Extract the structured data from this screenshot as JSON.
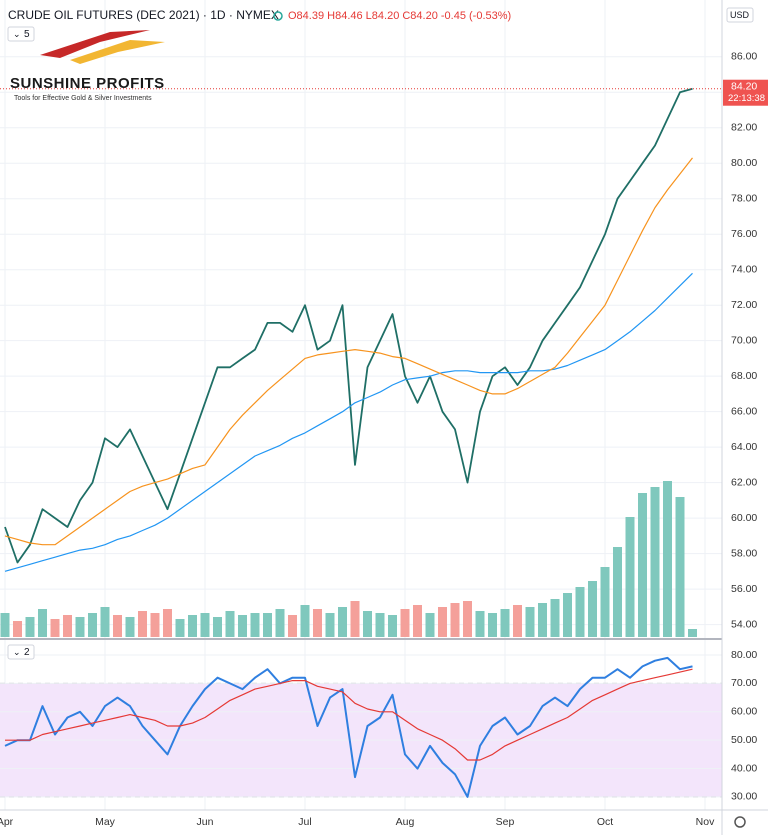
{
  "header": {
    "title": "CRUDE OIL FUTURES (DEC 2021) · 1D · NYMEX",
    "ohlc": "O84.39 H84.46 L84.20 C84.20 -0.45 (-0.53%)",
    "pane_main": "5",
    "pane_rsi": "2",
    "currency": "USD",
    "logo_title": "SUNSHINE PROFITS",
    "logo_tagline": "Tools for Effective Gold & Silver Investments"
  },
  "chart_data": [
    {
      "type": "line",
      "categories": [
        "Apr",
        null,
        null,
        null,
        null,
        null,
        null,
        null,
        "May",
        null,
        null,
        null,
        null,
        null,
        null,
        null,
        "Jun",
        null,
        null,
        null,
        null,
        null,
        null,
        null,
        "Jul",
        null,
        null,
        null,
        null,
        null,
        null,
        null,
        "Aug",
        null,
        null,
        null,
        null,
        null,
        null,
        null,
        "Sep",
        null,
        null,
        null,
        null,
        null,
        null,
        null,
        "Oct",
        null,
        null,
        null,
        null,
        null,
        null,
        null,
        "Nov"
      ],
      "series": [
        {
          "color": "#1f6f66",
          "values": [
            59.5,
            57.5,
            58.5,
            60.5,
            60,
            59.5,
            61,
            62,
            64.5,
            64,
            65,
            63.5,
            62,
            60.5,
            62.5,
            64.5,
            66.5,
            68.5,
            68.5,
            69,
            69.5,
            71,
            71,
            70.5,
            72,
            69.5,
            70,
            72,
            63,
            68.5,
            70,
            71.5,
            68,
            66.5,
            68,
            66,
            65,
            62,
            66,
            68,
            68.5,
            67.5,
            68.5,
            70,
            71,
            72,
            73,
            74.5,
            76,
            78,
            79,
            80,
            81,
            82.5,
            84,
            84.2,
            null
          ]
        },
        {
          "color": "#2196f3",
          "values": [
            57,
            57.2,
            57.4,
            57.6,
            57.8,
            58,
            58.2,
            58.3,
            58.5,
            58.8,
            59,
            59.3,
            59.6,
            60,
            60.5,
            61,
            61.5,
            62,
            62.5,
            63,
            63.5,
            63.8,
            64.1,
            64.5,
            64.8,
            65.2,
            65.6,
            66,
            66.5,
            66.8,
            67.1,
            67.5,
            67.8,
            67.9,
            68,
            68.2,
            68.3,
            68.3,
            68.2,
            68.2,
            68.2,
            68.2,
            68.3,
            68.3,
            68.4,
            68.6,
            68.9,
            69.2,
            69.5,
            70,
            70.5,
            71.1,
            71.7,
            72.4,
            73.1,
            73.8,
            null
          ]
        },
        {
          "color": "#f7931e",
          "values": [
            59,
            58.8,
            58.6,
            58.5,
            58.5,
            59,
            59.5,
            60,
            60.5,
            61,
            61.5,
            61.8,
            62,
            62.2,
            62.5,
            62.8,
            63,
            64,
            65,
            65.8,
            66.5,
            67.2,
            67.8,
            68.4,
            69,
            69.2,
            69.3,
            69.4,
            69.5,
            69.4,
            69.3,
            69.1,
            69,
            68.7,
            68.4,
            68.1,
            67.8,
            67.5,
            67.2,
            67,
            67,
            67.3,
            67.7,
            68.1,
            68.5,
            69.3,
            70.2,
            71.1,
            72,
            73.4,
            74.8,
            76.2,
            77.5,
            78.5,
            79.4,
            80.3,
            null
          ]
        }
      ],
      "volume": {
        "vlim": [
          0,
          100
        ],
        "up_color": "#7fc8bd",
        "down_color": "#f4a09a",
        "values": [
          12,
          8,
          10,
          14,
          9,
          11,
          10,
          12,
          15,
          11,
          10,
          13,
          12,
          14,
          9,
          11,
          12,
          10,
          13,
          11,
          12,
          12,
          14,
          11,
          16,
          14,
          12,
          15,
          18,
          13,
          12,
          11,
          14,
          16,
          12,
          15,
          17,
          18,
          13,
          12,
          14,
          16,
          15,
          17,
          19,
          22,
          25,
          28,
          35,
          45,
          60,
          72,
          75,
          78,
          70,
          4,
          null
        ]
      },
      "ylim": [
        53.3,
        89.2
      ],
      "yticks": [
        {
          "value": 54,
          "label": "54.00"
        },
        {
          "value": 56,
          "label": "56.00"
        },
        {
          "value": 58,
          "label": "58.00"
        },
        {
          "value": 60,
          "label": "60.00"
        },
        {
          "value": 62,
          "label": "62.00"
        },
        {
          "value": 64,
          "label": "64.00"
        },
        {
          "value": 66,
          "label": "66.00"
        },
        {
          "value": 68,
          "label": "68.00"
        },
        {
          "value": 70,
          "label": "70.00"
        },
        {
          "value": 72,
          "label": "72.00"
        },
        {
          "value": 74,
          "label": "74.00"
        },
        {
          "value": 76,
          "label": "76.00"
        },
        {
          "value": 78,
          "label": "78.00"
        },
        {
          "value": 80,
          "label": "80.00"
        },
        {
          "value": 82,
          "label": "82.00"
        },
        {
          "value": 84,
          "label": "84.00"
        },
        {
          "value": 86,
          "label": "86.00"
        }
      ],
      "last_price": {
        "value": 84.2,
        "label": "84.20"
      },
      "countdown": "22:13:38",
      "grid": true
    },
    {
      "type": "line",
      "series": [
        {
          "color": "#2f7fe0",
          "values": [
            48,
            50,
            50,
            62,
            52,
            58,
            60,
            55,
            62,
            65,
            62,
            55,
            50,
            45,
            55,
            62,
            68,
            72,
            70,
            68,
            72,
            75,
            70,
            72,
            72,
            55,
            65,
            68,
            37,
            55,
            58,
            66,
            45,
            40,
            48,
            42,
            38,
            30,
            48,
            55,
            58,
            52,
            55,
            62,
            65,
            62,
            68,
            72,
            72,
            75,
            72,
            76,
            78,
            79,
            75,
            76,
            null
          ]
        },
        {
          "color": "#e53935",
          "values": [
            50,
            50,
            50,
            52,
            53,
            54,
            55,
            56,
            57,
            58,
            59,
            58,
            57,
            55,
            55,
            56,
            58,
            61,
            64,
            66,
            68,
            69,
            70,
            71,
            71,
            69,
            68,
            67,
            63,
            61,
            60,
            60,
            57,
            54,
            52,
            50,
            47,
            43,
            43,
            45,
            48,
            50,
            52,
            54,
            56,
            58,
            61,
            64,
            66,
            68,
            70,
            71,
            72,
            73,
            74,
            75,
            null
          ]
        }
      ],
      "ylim": [
        26.1,
        85.3
      ],
      "yticks": [
        {
          "value": 30,
          "label": "30.00"
        },
        {
          "value": 40,
          "label": "40.00"
        },
        {
          "value": 50,
          "label": "50.00"
        },
        {
          "value": 60,
          "label": "60.00"
        },
        {
          "value": 70,
          "label": "70.00"
        },
        {
          "value": 80,
          "label": "80.00"
        }
      ],
      "band": [
        30,
        70
      ],
      "band_color": "#f3e5fb"
    }
  ]
}
